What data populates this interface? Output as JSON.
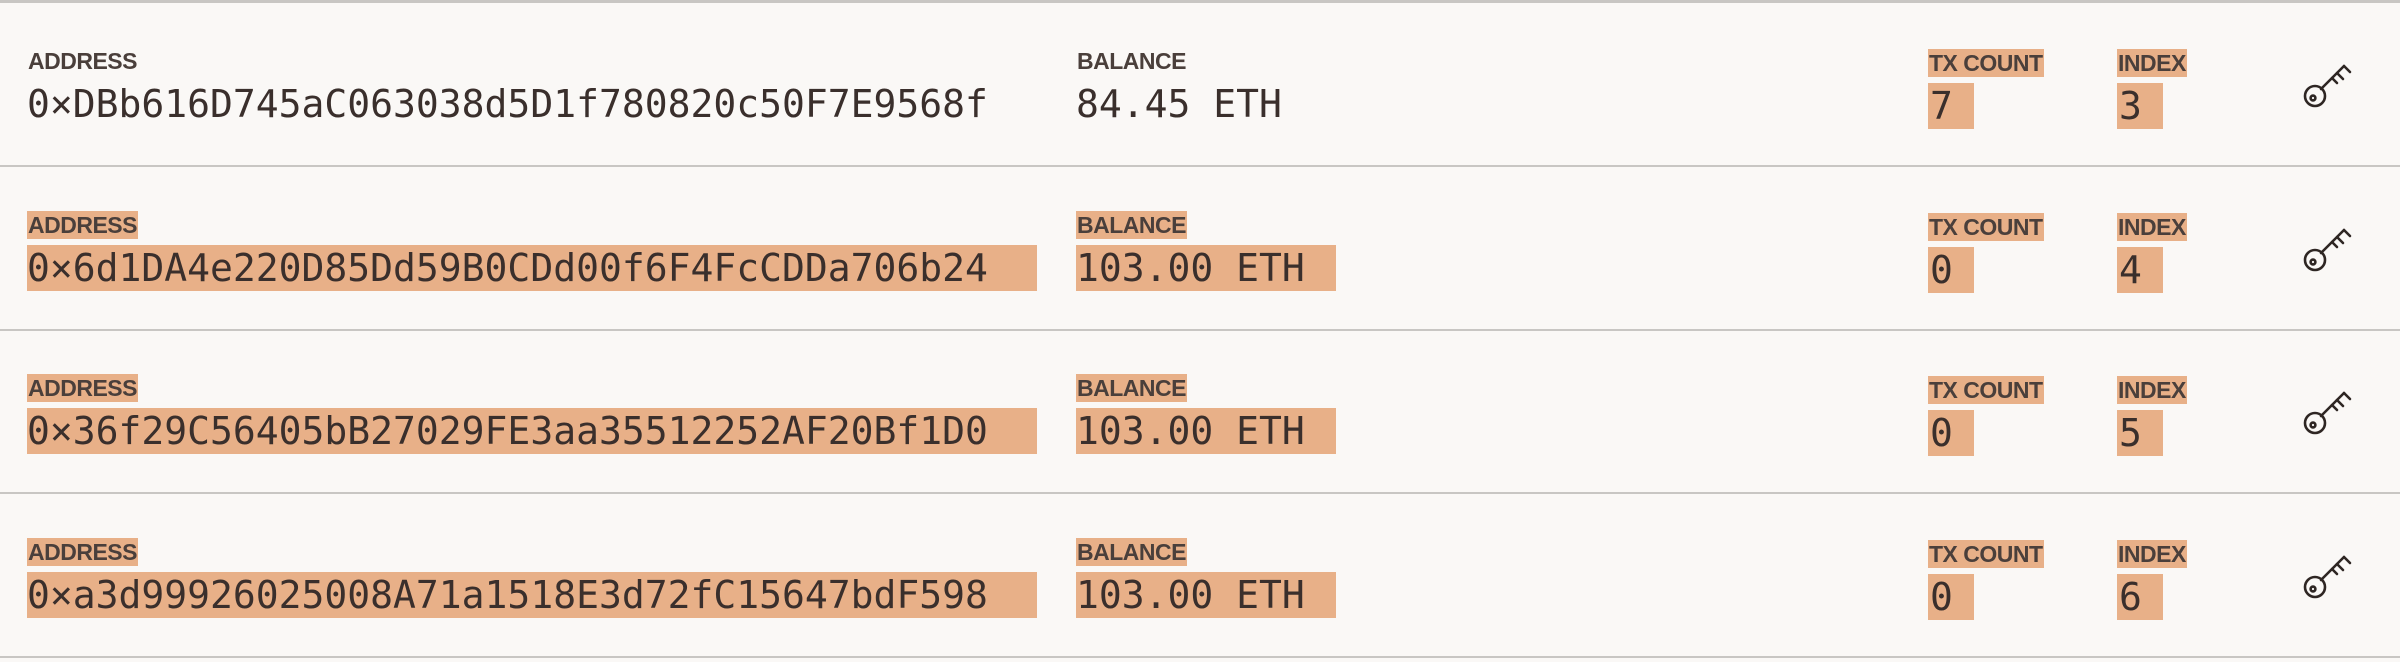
{
  "labels": {
    "address": "ADDRESS",
    "balance": "BALANCE",
    "tx_count": "TX COUNT",
    "index": "INDEX"
  },
  "accounts": [
    {
      "address": "0×DBb616D745aC063038d5D1f780820c50F7E9568f",
      "balance": "84.45 ETH",
      "tx_count": "7",
      "index": "3",
      "highlighted_labels": false
    },
    {
      "address": "0×6d1DA4e220D85Dd59B0CDd00f6F4FcCDDa706b24",
      "balance": "103.00 ETH",
      "tx_count": "0",
      "index": "4",
      "highlighted_labels": true
    },
    {
      "address": "0×36f29C56405bB27029FE3aa35512252AF20Bf1D0",
      "balance": "103.00 ETH",
      "tx_count": "0",
      "index": "5",
      "highlighted_labels": true
    },
    {
      "address": "0×a3d99926025008A71a1518E3d72fC15647bdF598",
      "balance": "103.00 ETH",
      "tx_count": "0",
      "index": "6",
      "highlighted_labels": true
    }
  ],
  "icons": {
    "show_keys": "key-icon"
  },
  "colors": {
    "highlight": "#e8b088",
    "background": "#faf8f6",
    "divider": "#c8c6c3",
    "text": "#3a2f2c"
  }
}
